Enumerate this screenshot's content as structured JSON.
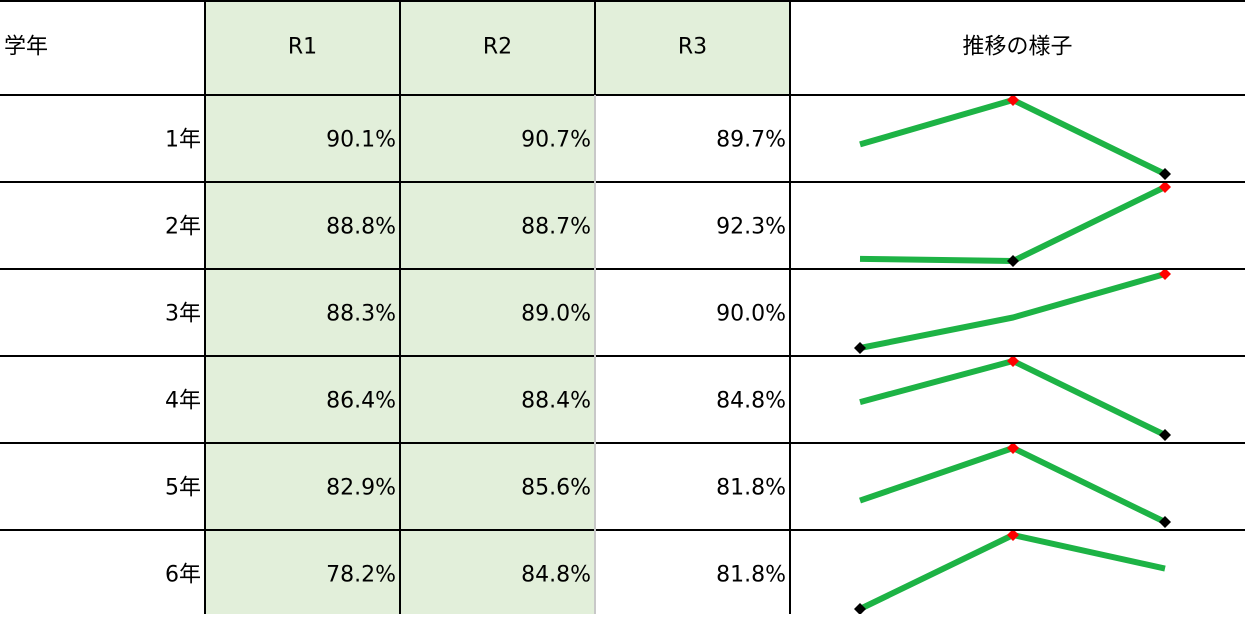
{
  "table": {
    "header": [
      "学年",
      "R1",
      "R2",
      "R3",
      "推移の様子"
    ],
    "rows": [
      {
        "label": "1年",
        "values": [
          90.1,
          90.7,
          89.7
        ],
        "value_labels": [
          "90.1%",
          "90.7%",
          "89.7%"
        ]
      },
      {
        "label": "2年",
        "values": [
          88.8,
          88.7,
          92.3
        ],
        "value_labels": [
          "88.8%",
          "88.7%",
          "92.3%"
        ]
      },
      {
        "label": "3年",
        "values": [
          88.3,
          89.0,
          90.0
        ],
        "value_labels": [
          "88.3%",
          "89.0%",
          "90.0%"
        ]
      },
      {
        "label": "4年",
        "values": [
          86.4,
          88.4,
          84.8
        ],
        "value_labels": [
          "86.4%",
          "88.4%",
          "84.8%"
        ]
      },
      {
        "label": "5年",
        "values": [
          82.9,
          85.6,
          81.8
        ],
        "value_labels": [
          "82.9%",
          "85.6%",
          "81.8%"
        ]
      },
      {
        "label": "6年",
        "values": [
          78.2,
          84.8,
          81.8
        ],
        "value_labels": [
          "78.2%",
          "84.8%",
          "81.8%"
        ]
      }
    ]
  }
}
